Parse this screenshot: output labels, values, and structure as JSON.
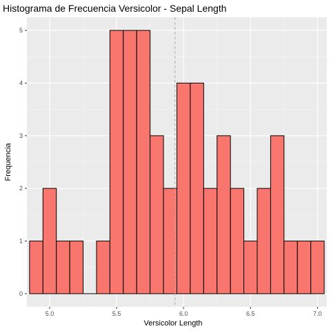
{
  "chart_data": {
    "type": "bar",
    "title": "Histograma de Frecuencia Versicolor - Sepal Length",
    "xlabel": "Versicolor Length",
    "ylabel": "Frequencia",
    "bin_width": 0.1,
    "bin_centers": [
      4.9,
      5.0,
      5.1,
      5.2,
      5.3,
      5.4,
      5.5,
      5.6,
      5.7,
      5.8,
      5.9,
      6.0,
      6.1,
      6.2,
      6.3,
      6.4,
      6.5,
      6.6,
      6.7,
      6.8,
      6.9,
      7.0
    ],
    "values": [
      1,
      2,
      1,
      1,
      0,
      1,
      5,
      5,
      5,
      3,
      2,
      4,
      4,
      2,
      3,
      2,
      1,
      2,
      3,
      1,
      1,
      1
    ],
    "mean_line": 5.936,
    "xlim": [
      4.83,
      7.07
    ],
    "ylim": [
      -0.25,
      5.25
    ],
    "x_ticks": [
      5.0,
      5.5,
      6.0,
      6.5,
      7.0
    ],
    "x_tick_labels": [
      "5.0",
      "5.5",
      "6.0",
      "6.5",
      "7.0"
    ],
    "y_ticks": [
      0,
      1,
      2,
      3,
      4,
      5
    ],
    "y_tick_labels": [
      "0",
      "1",
      "2",
      "3",
      "4",
      "5"
    ],
    "grid": true,
    "colors": {
      "bar_fill": "#F8766D",
      "bar_stroke": "#000000",
      "panel": "#EBEBEB",
      "grid_major": "#FFFFFF",
      "grid_minor": "#F5F5F5",
      "mean_line": "#AAAAAA"
    }
  }
}
